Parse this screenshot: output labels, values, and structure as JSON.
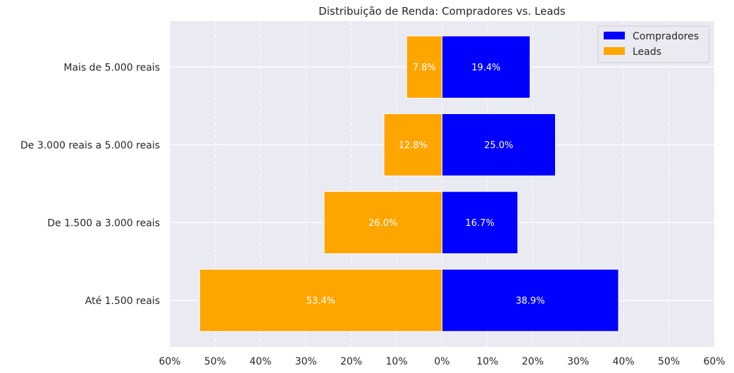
{
  "chart_data": {
    "type": "bar",
    "orientation": "horizontal-diverging",
    "title": "Distribuição de Renda: Compradores vs. Leads",
    "categories": [
      "Até 1.500 reais",
      "De 1.500 a 3.000 reais",
      "De 3.000 reais a 5.000 reais",
      "Mais de 5.000 reais"
    ],
    "series": [
      {
        "name": "Compradores",
        "color": "#0000ff",
        "direction": "right",
        "values": [
          38.9,
          16.7,
          25.0,
          19.4
        ],
        "labels": [
          "38.9%",
          "16.7%",
          "25.0%",
          "19.4%"
        ]
      },
      {
        "name": "Leads",
        "color": "#ffa500",
        "direction": "left",
        "values": [
          53.4,
          26.0,
          12.8,
          7.8
        ],
        "labels": [
          "53.4%",
          "26.0%",
          "12.8%",
          "7.8%"
        ]
      }
    ],
    "xlim": [
      -60,
      60
    ],
    "xticks": [
      -60,
      -50,
      -40,
      -30,
      -20,
      -10,
      0,
      10,
      20,
      30,
      40,
      50,
      60
    ],
    "xtick_labels": [
      "60%",
      "50%",
      "40%",
      "30%",
      "20%",
      "10%",
      "0%",
      "10%",
      "20%",
      "30%",
      "40%",
      "50%",
      "60%"
    ],
    "grid": true,
    "legend": "top-right",
    "background": "#eaeaf2"
  }
}
